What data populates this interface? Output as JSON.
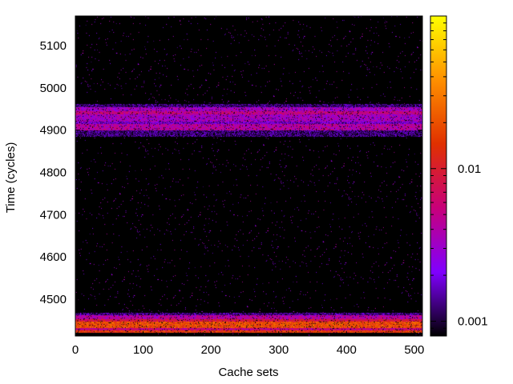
{
  "chart_data": {
    "type": "heatmap",
    "title": "",
    "xlabel": "Cache sets",
    "ylabel": "Time (cycles)",
    "xlim": [
      0,
      512
    ],
    "ylim": [
      4413,
      5170
    ],
    "x_ticks": [
      {
        "value": 0,
        "label": "0"
      },
      {
        "value": 100,
        "label": "100"
      },
      {
        "value": 200,
        "label": "200"
      },
      {
        "value": 300,
        "label": "300"
      },
      {
        "value": 400,
        "label": "400"
      },
      {
        "value": 500,
        "label": "500"
      }
    ],
    "y_ticks": [
      {
        "value": 4500,
        "label": "4500"
      },
      {
        "value": 4600,
        "label": "4600"
      },
      {
        "value": 4700,
        "label": "4700"
      },
      {
        "value": 4800,
        "label": "4800"
      },
      {
        "value": 4900,
        "label": "4900"
      },
      {
        "value": 5000,
        "label": "5000"
      },
      {
        "value": 5100,
        "label": "5100"
      }
    ],
    "colorbar": {
      "scale": "log",
      "range": [
        0.0008,
        0.1
      ],
      "colormap": [
        "#000000",
        "#8000ff",
        "#c8007a",
        "#e03000",
        "#ff9000",
        "#ffff00"
      ],
      "ticks": [
        {
          "value": 0.01,
          "label": "0.01"
        },
        {
          "value": 0.001,
          "label": "0.001"
        }
      ]
    },
    "bands": [
      {
        "y_from": 4421,
        "y_to": 4427,
        "intensity": 0.016
      },
      {
        "y_from": 4427,
        "y_to": 4432,
        "intensity": 0.006
      },
      {
        "y_from": 4432,
        "y_to": 4447,
        "intensity": 0.02
      },
      {
        "y_from": 4447,
        "y_to": 4452,
        "intensity": 0.009
      },
      {
        "y_from": 4452,
        "y_to": 4462,
        "intensity": 0.0045
      },
      {
        "y_from": 4462,
        "y_to": 4467,
        "intensity": 0.0014
      },
      {
        "y_from": 4900,
        "y_to": 4915,
        "intensity": 0.0045
      },
      {
        "y_from": 4915,
        "y_to": 4920,
        "intensity": 0.0022
      },
      {
        "y_from": 4920,
        "y_to": 4937,
        "intensity": 0.0035
      },
      {
        "y_from": 4937,
        "y_to": 4945,
        "intensity": 0.0055
      },
      {
        "y_from": 4945,
        "y_to": 4955,
        "intensity": 0.0035
      },
      {
        "y_from": 4885,
        "y_to": 4900,
        "intensity": 0.0013
      },
      {
        "y_from": 4955,
        "y_to": 4962,
        "intensity": 0.0013
      }
    ],
    "grid": false,
    "legend": "none"
  }
}
